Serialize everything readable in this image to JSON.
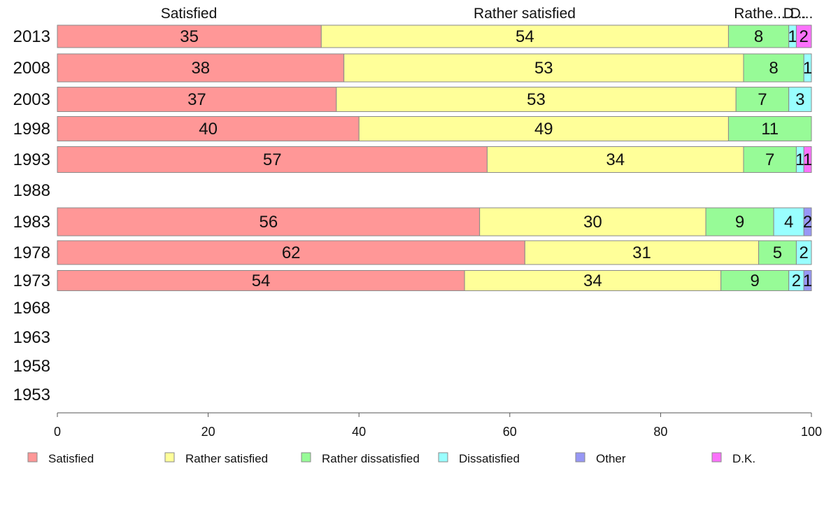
{
  "chart_data": {
    "type": "bar",
    "orientation": "horizontal",
    "stacked": true,
    "xlim": [
      0,
      100
    ],
    "x_ticks": [
      "0",
      "20",
      "40",
      "60",
      "80",
      "100"
    ],
    "categories": [
      "2013",
      "2008",
      "2003",
      "1998",
      "1993",
      "1988",
      "1983",
      "1978",
      "1973",
      "1968",
      "1963",
      "1958",
      "1953"
    ],
    "series": [
      {
        "name": "Satisfied",
        "color": "#ff9797",
        "values": [
          35,
          38,
          37,
          40,
          57,
          null,
          56,
          62,
          54,
          null,
          null,
          null,
          null
        ]
      },
      {
        "name": "Rather satisfied",
        "color": "#ffff99",
        "values": [
          54,
          53,
          53,
          49,
          34,
          null,
          30,
          31,
          34,
          null,
          null,
          null,
          null
        ]
      },
      {
        "name": "Rather dissatisfied",
        "color": "#97fb97",
        "values": [
          8,
          8,
          7,
          11,
          7,
          null,
          9,
          5,
          9,
          null,
          null,
          null,
          null
        ]
      },
      {
        "name": "Dissatisfied",
        "color": "#99ffff",
        "values": [
          1,
          1,
          3,
          0,
          1,
          null,
          4,
          2,
          2,
          null,
          null,
          null,
          null
        ]
      },
      {
        "name": "Other",
        "color": "#9797f5",
        "values": [
          0,
          0,
          0,
          0,
          0,
          null,
          2,
          0,
          1,
          null,
          null,
          null,
          null
        ]
      },
      {
        "name": "D.K.",
        "color": "#fb71fb",
        "values": [
          2,
          0,
          0,
          0,
          1,
          null,
          0,
          0,
          0,
          null,
          null,
          null,
          null
        ]
      }
    ],
    "column_headers": [
      "Satisfied",
      "Rather satisfied",
      "Rathe...",
      "D...",
      "D..."
    ],
    "legend_placement": "bottom",
    "grid": false
  }
}
